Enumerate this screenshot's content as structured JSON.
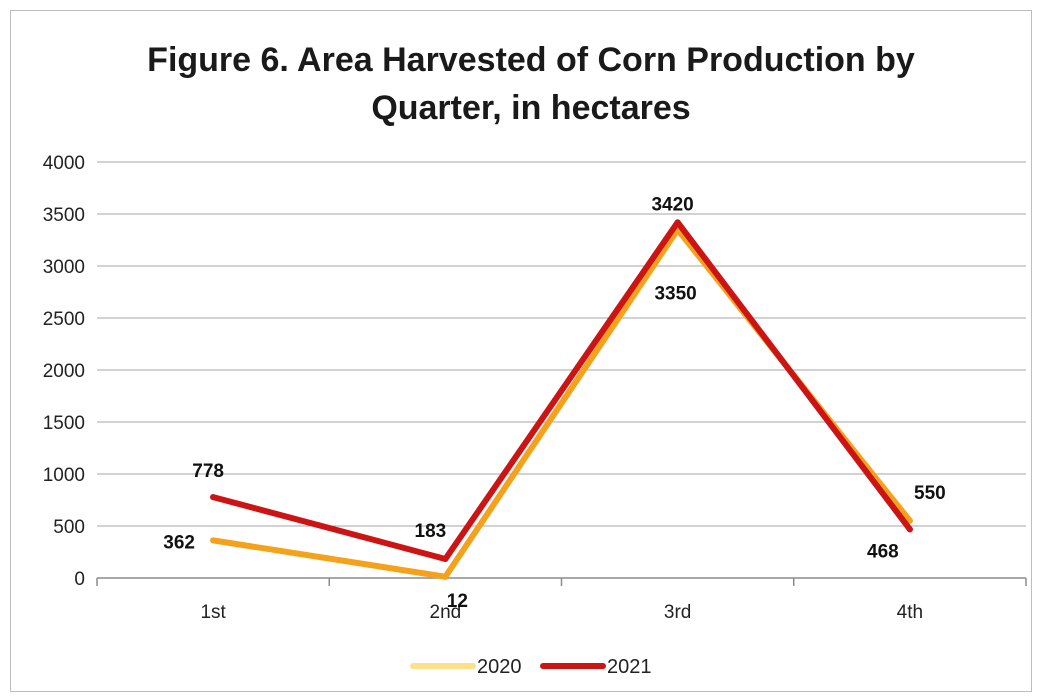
{
  "chart_data": {
    "type": "line",
    "title_line1": "Figure 6. Area Harvested of Corn Production by",
    "title_line2": "Quarter, in hectares",
    "categories": [
      "1st",
      "2nd",
      "3rd",
      "4th"
    ],
    "series": [
      {
        "name": "2020",
        "values": [
          362,
          12,
          3350,
          550
        ],
        "color": "#f4a21c"
      },
      {
        "name": "2021",
        "values": [
          778,
          183,
          3420,
          468
        ],
        "color": "#cc1414"
      }
    ],
    "ylim": [
      0,
      4000
    ],
    "yticks": [
      0,
      500,
      1000,
      1500,
      2000,
      2500,
      3000,
      3500,
      4000
    ],
    "grid": true,
    "legend": "bottom"
  }
}
